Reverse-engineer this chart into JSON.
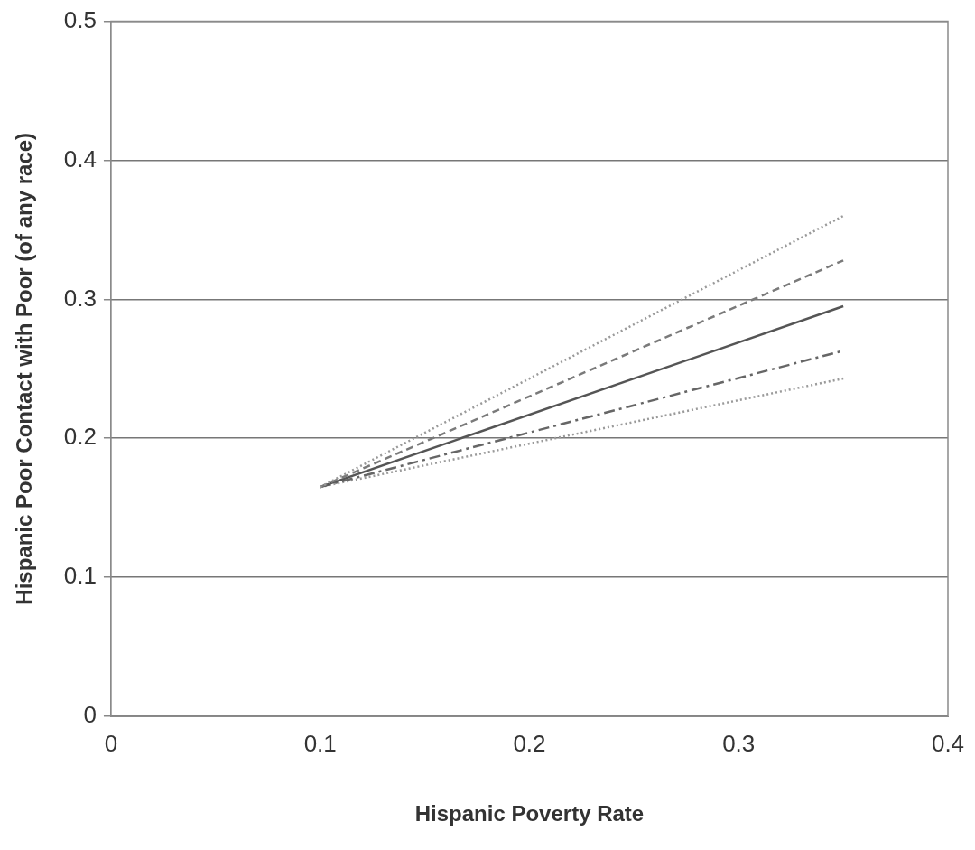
{
  "chart_data": {
    "type": "line",
    "xlabel": "Hispanic Poverty Rate",
    "ylabel": "Hispanic Poor Contact with Poor (of any race)",
    "x": [
      0.1,
      0.35
    ],
    "xlim": [
      0,
      0.4
    ],
    "xticks": [
      0,
      0.1,
      0.2,
      0.3,
      0.4
    ],
    "ylim": [
      0,
      0.5
    ],
    "yticks": [
      0,
      0.1,
      0.2,
      0.3,
      0.4,
      0.5
    ],
    "grid": "y",
    "marker": "none",
    "series": [
      {
        "color": "#9a9a9a",
        "line_style": "dotted",
        "values": [
          0.165,
          0.36
        ]
      },
      {
        "color": "#7a7a7a",
        "line_style": "dashed",
        "values": [
          0.165,
          0.328
        ]
      },
      {
        "color": "#555555",
        "line_style": "solid",
        "values": [
          0.165,
          0.295
        ]
      },
      {
        "color": "#666666",
        "line_style": "dashdot",
        "values": [
          0.165,
          0.263
        ]
      },
      {
        "color": "#9a9a9a",
        "line_style": "dotted",
        "values": [
          0.165,
          0.243
        ]
      }
    ]
  }
}
